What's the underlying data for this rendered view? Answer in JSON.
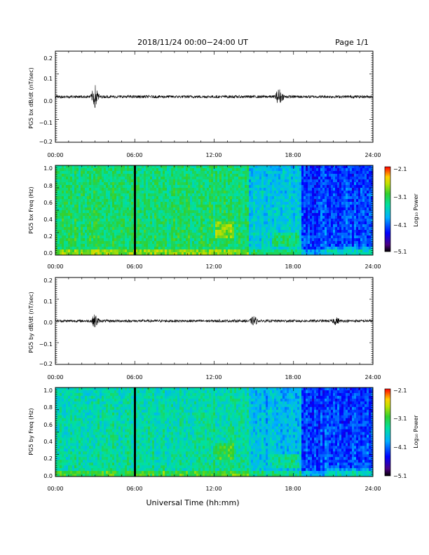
{
  "header": {
    "title": "2018/11/24  00:00−24:00 UT",
    "page": "Page 1/1"
  },
  "x_axis_title": "Universal Time (hh:mm)",
  "chart_data": [
    {
      "type": "line",
      "ylabel": "PG5 bx dB/dt (nT/sec)",
      "xlim": [
        0,
        24
      ],
      "ylim": [
        -0.2,
        0.2
      ],
      "xticks": [
        "00:00",
        "06:00",
        "12:00",
        "18:00",
        "24:00"
      ],
      "yticks": [
        "0.2",
        "0.1",
        "0.0",
        "−0.1",
        "−0.2"
      ],
      "series": [
        {
          "values": [
            0.0,
            0.0,
            0.0,
            0.05,
            0.0,
            0.0,
            0.0,
            0.0,
            0.0,
            0.0,
            0.0,
            0.0,
            0.0,
            0.0,
            0.0,
            0.0,
            0.035,
            0.02,
            0.0,
            0.0,
            0.0,
            0.0,
            0.0,
            0.0
          ],
          "x": [
            0,
            1,
            2,
            3,
            4,
            5,
            6,
            7,
            8,
            9,
            10,
            11,
            12,
            13,
            14,
            15,
            16.9,
            17,
            18,
            19,
            20,
            21,
            22,
            23.9
          ]
        }
      ]
    },
    {
      "type": "heatmap",
      "ylabel": "PG5 bx Freq (Hz)",
      "xlim": [
        0,
        24
      ],
      "ylim": [
        0.0,
        1.0
      ],
      "xticks": [
        "00:00",
        "06:00",
        "12:00",
        "18:00",
        "24:00"
      ],
      "yticks": [
        "1.0",
        "0.8",
        "0.6",
        "0.4",
        "0.2",
        "0.0"
      ],
      "colorbar": {
        "label": "Log₁₀ Power",
        "ticks": [
          "−2.1",
          "−3.1",
          "−4.1",
          "−5.1"
        ],
        "range": [
          -5.1,
          -2.1
        ]
      },
      "gap_hour": 6.1
    },
    {
      "type": "line",
      "ylabel": "PG5 by dB/dt (nT/sec)",
      "xlim": [
        0,
        24
      ],
      "ylim": [
        -0.2,
        0.2
      ],
      "xticks": [
        "00:00",
        "06:00",
        "12:00",
        "18:00",
        "24:00"
      ],
      "yticks": [
        "0.2",
        "0.1",
        "0.0",
        "−0.1",
        "−0.2"
      ],
      "series": [
        {
          "values": [
            0.0,
            0.0,
            0.0,
            -0.03,
            0.0,
            0.0,
            0.0,
            0.0,
            0.0,
            0.0,
            0.0,
            0.0,
            0.0,
            0.0,
            0.0,
            -0.02,
            0.0,
            0.0,
            0.0,
            0.0,
            0.0,
            0.015,
            0.0,
            0.0
          ],
          "x": [
            0,
            1,
            2,
            3,
            4,
            5,
            6,
            7,
            8,
            9,
            10,
            11,
            12,
            13,
            14,
            15,
            16,
            17,
            18,
            19,
            20,
            21.2,
            22,
            23.9
          ]
        }
      ]
    },
    {
      "type": "heatmap",
      "ylabel": "PG5 by Freq (Hz)",
      "xlim": [
        0,
        24
      ],
      "ylim": [
        0.0,
        1.0
      ],
      "xticks": [
        "00:00",
        "06:00",
        "12:00",
        "18:00",
        "24:00"
      ],
      "yticks": [
        "1.0",
        "0.8",
        "0.6",
        "0.4",
        "0.2",
        "0.0"
      ],
      "colorbar": {
        "label": "Log₁₀ Power",
        "ticks": [
          "−2.1",
          "−3.1",
          "−4.1",
          "−5.1"
        ],
        "range": [
          -5.1,
          -2.1
        ]
      },
      "gap_hour": 6.1
    }
  ]
}
